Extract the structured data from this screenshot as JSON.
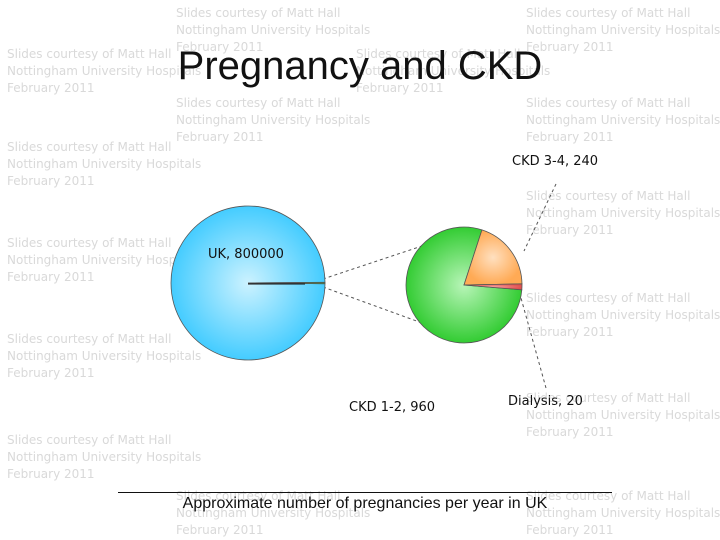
{
  "watermark": "Slides courtesy of Matt Hall\nNottingham University Hospitals\nFebruary 2011",
  "slide": {
    "title": "Pregnancy and CKD"
  },
  "chart_data": {
    "type": "pie",
    "title": "Approximate number of pregnancies per year in UK",
    "main_pie": {
      "slices": [
        {
          "label": "UK",
          "value": 800000,
          "display": "UK, 800000"
        },
        {
          "label": "CKD",
          "value": 1220,
          "exploded_into_secondary": true
        }
      ]
    },
    "secondary_pie": {
      "slices": [
        {
          "label": "CKD 1-2",
          "value": 960,
          "display": "CKD 1-2, 960",
          "color": "#33cc33"
        },
        {
          "label": "CKD 3-4",
          "value": 240,
          "display": "CKD 3-4, 240",
          "color": "#ffaa55"
        },
        {
          "label": "Dialysis",
          "value": 20,
          "display": "Dialysis, 20",
          "color": "#e05050"
        }
      ]
    },
    "colors": {
      "main": "#44ccff"
    }
  }
}
